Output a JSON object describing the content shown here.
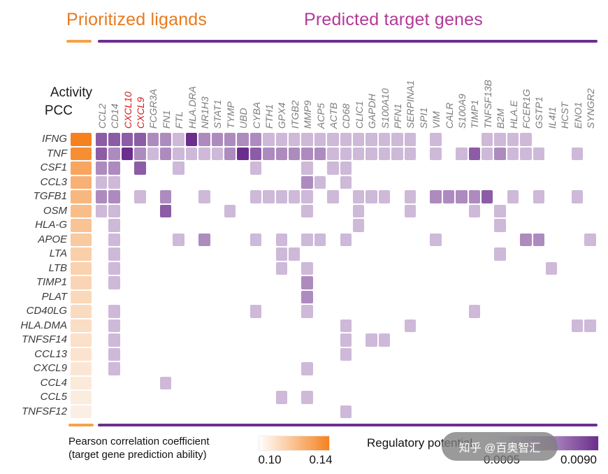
{
  "header": {
    "left_title": "Prioritized ligands",
    "right_title": "Predicted target genes"
  },
  "axis": {
    "activity_label": "Activity",
    "pcc_label": "PCC"
  },
  "colors": {
    "title_orange": "#e87a1e",
    "title_purple": "#b23a97",
    "rule_orange": "#f5a24a",
    "rule_purple": "#6b2e91",
    "heat_purple_max": "#6b2e8c",
    "pcc_orange_max": "#f5821f",
    "highlight_red": "#d42020",
    "label_gray": "#7d7d7d"
  },
  "chart_data": {
    "type": "heatmap",
    "title": "Ligand activity and ligand-target regulatory potential heatmap",
    "columns": [
      "CCL2",
      "CD14",
      "CXCL10",
      "CXCL9",
      "FCGR3A",
      "FN1",
      "FTL",
      "HLA.DRA",
      "NR1H3",
      "STAT1",
      "TYMP",
      "UBD",
      "CYBA",
      "FTH1",
      "GPX4",
      "ITGB2",
      "MMP9",
      "ACP5",
      "ACTB",
      "CD68",
      "CLIC1",
      "GAPDH",
      "S100A10",
      "PFN1",
      "SERPINA1",
      "SPI1",
      "VIM",
      "CALR",
      "S100A9",
      "TIMP1",
      "TNFSF13B",
      "B2M",
      "HLA.E",
      "FCER1G",
      "GSTP1",
      "IL4I1",
      "HCST",
      "ENO1",
      "SYNGR2"
    ],
    "highlighted_columns": [
      "CXCL10",
      "CXCL9"
    ],
    "rows": [
      "IFNG",
      "TNF",
      "CSF1",
      "CCL3",
      "TGFB1",
      "OSM",
      "HLA-G",
      "APOE",
      "LTA",
      "LTB",
      "TIMP1",
      "PLAT",
      "CD40LG",
      "HLA.DMA",
      "TNFSF14",
      "CCL13",
      "CXCL9",
      "CCL4",
      "CCL5",
      "TNFSF12"
    ],
    "pcc": {
      "label": "PCC",
      "range": [
        0.1,
        0.14
      ],
      "values": [
        0.14,
        0.136,
        0.128,
        0.124,
        0.122,
        0.12,
        0.118,
        0.116,
        0.114,
        0.113,
        0.112,
        0.111,
        0.11,
        0.109,
        0.108,
        0.107,
        0.106,
        0.105,
        0.104,
        0.103
      ]
    },
    "regulatory_potential": {
      "range": [
        0.0005,
        0.009
      ],
      "level_values": [
        0,
        0.0015,
        0.003,
        0.005,
        0.007,
        0.009
      ],
      "levels": [
        [
          4,
          4,
          4,
          4,
          3,
          3,
          2,
          5,
          3,
          3,
          3,
          3,
          3,
          2,
          2,
          2,
          2,
          2,
          2,
          2,
          2,
          2,
          2,
          2,
          2,
          0,
          2,
          0,
          0,
          0,
          2,
          2,
          2,
          2,
          0,
          0,
          0,
          0,
          0
        ],
        [
          4,
          3,
          5,
          3,
          2,
          3,
          2,
          2,
          2,
          2,
          3,
          5,
          4,
          3,
          3,
          3,
          3,
          3,
          2,
          2,
          2,
          2,
          2,
          2,
          2,
          0,
          2,
          0,
          2,
          4,
          2,
          3,
          2,
          2,
          2,
          0,
          0,
          2,
          0
        ],
        [
          3,
          3,
          0,
          4,
          0,
          0,
          2,
          0,
          0,
          0,
          0,
          0,
          2,
          0,
          0,
          0,
          2,
          0,
          2,
          2,
          0,
          0,
          0,
          0,
          0,
          0,
          0,
          0,
          0,
          0,
          0,
          0,
          0,
          0,
          0,
          0,
          0,
          0,
          0
        ],
        [
          2,
          2,
          0,
          0,
          0,
          0,
          0,
          0,
          0,
          0,
          0,
          0,
          0,
          0,
          0,
          0,
          3,
          2,
          0,
          2,
          0,
          0,
          0,
          0,
          0,
          0,
          0,
          0,
          0,
          0,
          0,
          0,
          0,
          0,
          0,
          0,
          0,
          0,
          0
        ],
        [
          3,
          3,
          0,
          2,
          0,
          3,
          0,
          0,
          2,
          0,
          0,
          0,
          2,
          2,
          2,
          2,
          2,
          0,
          2,
          0,
          2,
          2,
          2,
          0,
          2,
          0,
          3,
          3,
          3,
          3,
          4,
          0,
          2,
          0,
          2,
          0,
          0,
          2,
          0
        ],
        [
          2,
          2,
          0,
          0,
          0,
          4,
          0,
          0,
          0,
          0,
          2,
          0,
          0,
          0,
          0,
          0,
          2,
          0,
          0,
          0,
          2,
          0,
          0,
          0,
          2,
          0,
          0,
          0,
          0,
          2,
          0,
          2,
          0,
          0,
          0,
          0,
          0,
          0,
          0
        ],
        [
          0,
          2,
          0,
          0,
          0,
          0,
          0,
          0,
          0,
          0,
          0,
          0,
          0,
          0,
          0,
          0,
          0,
          0,
          0,
          0,
          2,
          0,
          0,
          0,
          0,
          0,
          0,
          0,
          0,
          0,
          0,
          2,
          0,
          0,
          0,
          0,
          0,
          0,
          0
        ],
        [
          0,
          2,
          0,
          0,
          0,
          0,
          2,
          0,
          3,
          0,
          0,
          0,
          2,
          0,
          2,
          0,
          2,
          2,
          0,
          2,
          0,
          0,
          0,
          0,
          0,
          0,
          2,
          0,
          0,
          0,
          0,
          0,
          0,
          3,
          3,
          0,
          0,
          0,
          2
        ],
        [
          0,
          2,
          0,
          0,
          0,
          0,
          0,
          0,
          0,
          0,
          0,
          0,
          0,
          0,
          2,
          2,
          0,
          0,
          0,
          0,
          0,
          0,
          0,
          0,
          0,
          0,
          0,
          0,
          0,
          0,
          0,
          2,
          0,
          0,
          0,
          0,
          0,
          0,
          0
        ],
        [
          0,
          2,
          0,
          0,
          0,
          0,
          0,
          0,
          0,
          0,
          0,
          0,
          0,
          0,
          2,
          0,
          2,
          0,
          0,
          0,
          0,
          0,
          0,
          0,
          0,
          0,
          0,
          0,
          0,
          0,
          0,
          0,
          0,
          0,
          0,
          2,
          0,
          0,
          0
        ],
        [
          0,
          2,
          0,
          0,
          0,
          0,
          0,
          0,
          0,
          0,
          0,
          0,
          0,
          0,
          0,
          0,
          3,
          0,
          0,
          0,
          0,
          0,
          0,
          0,
          0,
          0,
          0,
          0,
          0,
          0,
          0,
          0,
          0,
          0,
          0,
          0,
          0,
          0,
          0
        ],
        [
          0,
          0,
          0,
          0,
          0,
          0,
          0,
          0,
          0,
          0,
          0,
          0,
          0,
          0,
          0,
          0,
          3,
          0,
          0,
          0,
          0,
          0,
          0,
          0,
          0,
          0,
          0,
          0,
          0,
          0,
          0,
          0,
          0,
          0,
          0,
          0,
          0,
          0,
          0
        ],
        [
          0,
          2,
          0,
          0,
          0,
          0,
          0,
          0,
          0,
          0,
          0,
          0,
          2,
          0,
          0,
          0,
          2,
          0,
          0,
          0,
          0,
          0,
          0,
          0,
          0,
          0,
          0,
          0,
          0,
          2,
          0,
          0,
          0,
          0,
          0,
          0,
          0,
          0,
          0
        ],
        [
          0,
          2,
          0,
          0,
          0,
          0,
          0,
          0,
          0,
          0,
          0,
          0,
          0,
          0,
          0,
          0,
          0,
          0,
          0,
          2,
          0,
          0,
          0,
          0,
          2,
          0,
          0,
          0,
          0,
          0,
          0,
          0,
          0,
          0,
          0,
          0,
          0,
          2,
          2
        ],
        [
          0,
          2,
          0,
          0,
          0,
          0,
          0,
          0,
          0,
          0,
          0,
          0,
          0,
          0,
          0,
          0,
          0,
          0,
          0,
          2,
          0,
          2,
          2,
          0,
          0,
          0,
          0,
          0,
          0,
          0,
          0,
          0,
          0,
          0,
          0,
          0,
          0,
          0,
          0
        ],
        [
          0,
          2,
          0,
          0,
          0,
          0,
          0,
          0,
          0,
          0,
          0,
          0,
          0,
          0,
          0,
          0,
          0,
          0,
          0,
          2,
          0,
          0,
          0,
          0,
          0,
          0,
          0,
          0,
          0,
          0,
          0,
          0,
          0,
          0,
          0,
          0,
          0,
          0,
          0
        ],
        [
          0,
          2,
          0,
          0,
          0,
          0,
          0,
          0,
          0,
          0,
          0,
          0,
          0,
          0,
          0,
          0,
          2,
          0,
          0,
          0,
          0,
          0,
          0,
          0,
          0,
          0,
          0,
          0,
          0,
          0,
          0,
          0,
          0,
          0,
          0,
          0,
          0,
          0,
          0
        ],
        [
          0,
          0,
          0,
          0,
          0,
          2,
          0,
          0,
          0,
          0,
          0,
          0,
          0,
          0,
          0,
          0,
          0,
          0,
          0,
          0,
          0,
          0,
          0,
          0,
          0,
          0,
          0,
          0,
          0,
          0,
          0,
          0,
          0,
          0,
          0,
          0,
          0,
          0,
          0
        ],
        [
          0,
          0,
          0,
          0,
          0,
          0,
          0,
          0,
          0,
          0,
          0,
          0,
          0,
          0,
          2,
          0,
          2,
          0,
          0,
          0,
          0,
          0,
          0,
          0,
          0,
          0,
          0,
          0,
          0,
          0,
          0,
          0,
          0,
          0,
          0,
          0,
          0,
          0,
          0
        ],
        [
          0,
          0,
          0,
          0,
          0,
          0,
          0,
          0,
          0,
          0,
          0,
          0,
          0,
          0,
          0,
          0,
          0,
          0,
          0,
          2,
          0,
          0,
          0,
          0,
          0,
          0,
          0,
          0,
          0,
          0,
          0,
          0,
          0,
          0,
          0,
          0,
          0,
          0,
          0
        ]
      ]
    }
  },
  "legend": {
    "pearson": {
      "line1": "Pearson correlation coefficient",
      "line2": "(target gene prediction ability)",
      "min": "0.10",
      "max": "0.14"
    },
    "regulatory": {
      "label": "Regulatory potential",
      "min": "0.0005",
      "max": "0.0090"
    }
  },
  "watermark": "知乎 @百奥智汇"
}
